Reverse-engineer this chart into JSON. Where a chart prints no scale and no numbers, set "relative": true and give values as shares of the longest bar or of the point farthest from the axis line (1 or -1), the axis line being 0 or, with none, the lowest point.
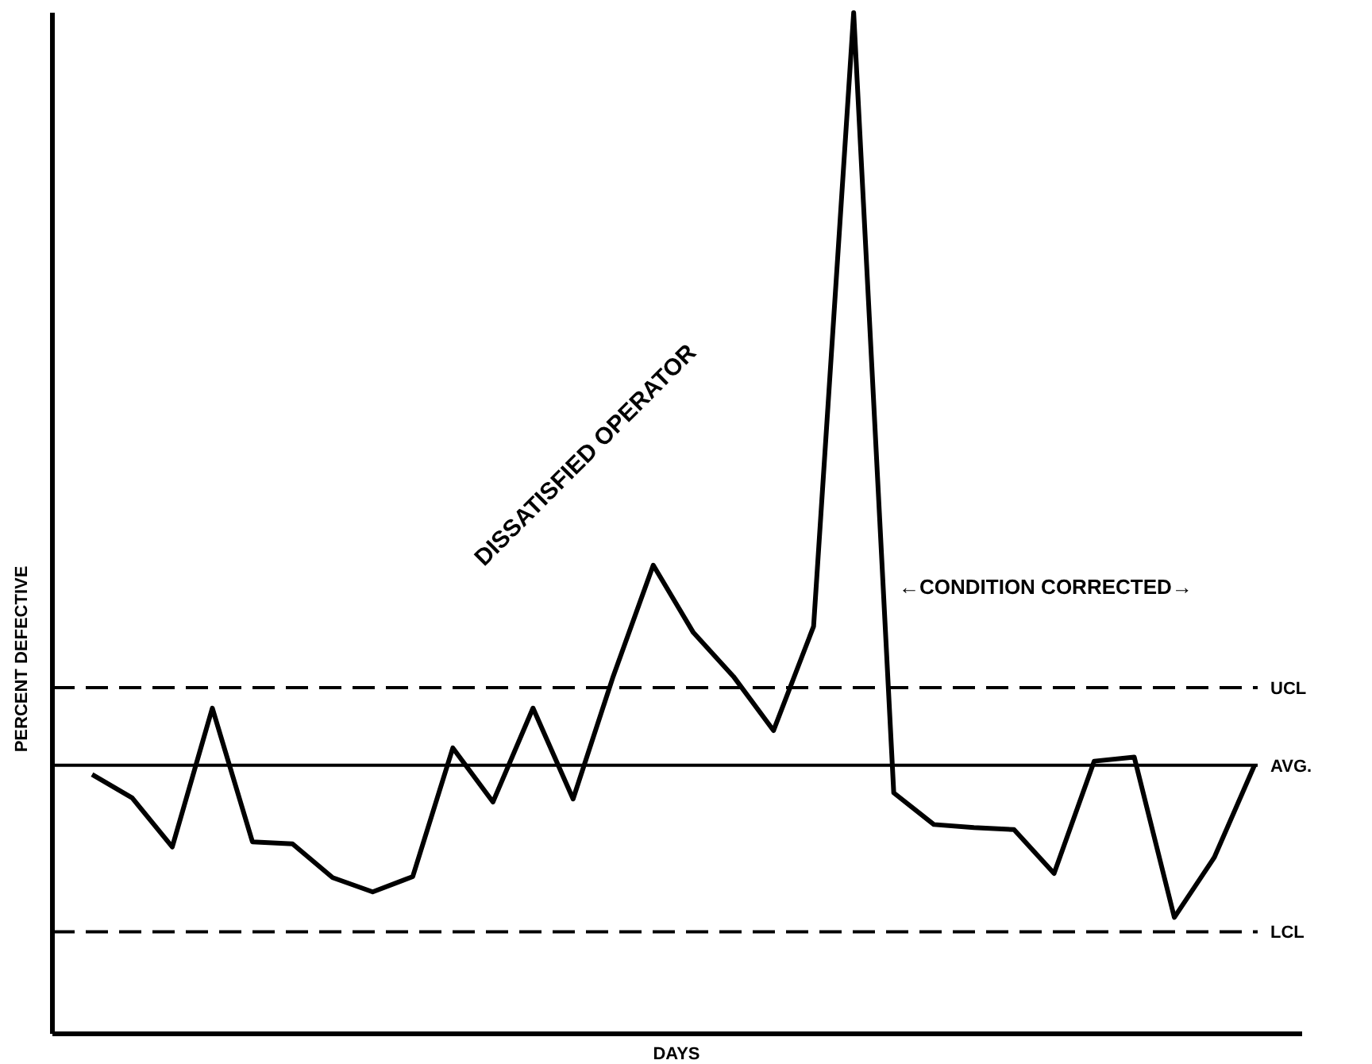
{
  "chart_data": {
    "type": "line",
    "relative": true,
    "xlabel": "DAYS",
    "ylabel": "PERCENT DEFECTIVE",
    "color": "#000000",
    "line_style": "solid",
    "categories": [
      null,
      null,
      null,
      null,
      null,
      null,
      null,
      null,
      null,
      null,
      null,
      null,
      null,
      null,
      null,
      null,
      null,
      null,
      null,
      null,
      null,
      null,
      null,
      null,
      null,
      null,
      null,
      null,
      null,
      null
    ],
    "values": [
      0.254,
      0.231,
      0.183,
      0.319,
      0.188,
      0.186,
      0.153,
      0.139,
      0.154,
      0.28,
      0.227,
      0.319,
      0.23,
      0.35,
      0.459,
      0.393,
      0.35,
      0.297,
      0.399,
      1,
      0.236,
      0.205,
      0.202,
      0.2,
      0.157,
      0.267,
      0.271,
      0.114,
      0.173,
      0.263
    ],
    "ref_lines": [
      {
        "axis": "y",
        "value": 0.339,
        "label": "UCL",
        "line_style": "dashed",
        "color": "#000000"
      },
      {
        "axis": "y",
        "value": 0.263,
        "label": "AVG.",
        "line_style": "solid",
        "color": "#000000"
      },
      {
        "axis": "y",
        "value": 0.1,
        "label": "LCL",
        "line_style": "dashed",
        "color": "#000000"
      }
    ],
    "annotations": [
      "DISSATISFIED OPERATOR",
      "←CONDITION CORRECTED→"
    ]
  }
}
